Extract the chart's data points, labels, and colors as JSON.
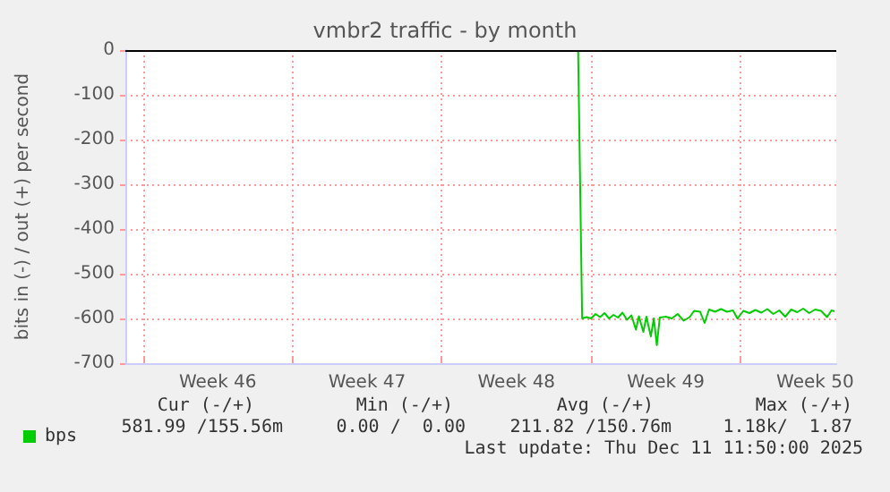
{
  "chart_data": {
    "type": "line",
    "title": "vmbr2 traffic - by month",
    "ylabel": "bits in (-) / out (+) per second",
    "xlim": [
      "2025-11-08T04:00",
      "2025-12-11T11:50"
    ],
    "xticks": [
      {
        "value": "2025-11-09T00:00",
        "label": null
      },
      {
        "value": "2025-11-12T12:00",
        "label": "Week 46"
      },
      {
        "value": "2025-11-16T00:00",
        "label": null
      },
      {
        "value": "2025-11-19T12:00",
        "label": "Week 47"
      },
      {
        "value": "2025-11-23T00:00",
        "label": null
      },
      {
        "value": "2025-11-26T12:00",
        "label": "Week 48"
      },
      {
        "value": "2025-11-30T00:00",
        "label": null
      },
      {
        "value": "2025-12-03T12:00",
        "label": "Week 49"
      },
      {
        "value": "2025-12-07T00:00",
        "label": null
      },
      {
        "value": "2025-12-10T12:00",
        "label": "Week 50"
      }
    ],
    "ylim": [
      -700,
      0
    ],
    "yticks": [
      -700,
      -600,
      -500,
      -400,
      -300,
      -200,
      -100,
      0
    ],
    "grid": true,
    "legend": "bottom left",
    "marker": "none",
    "line_style": "solid",
    "ref_lines": [
      {
        "axis": "y",
        "value": 0,
        "color": "#000000"
      }
    ],
    "series": [
      {
        "name": "bps",
        "color": "#00cc00",
        "x": [
          "2025-11-29T09:23",
          "2025-11-29T13:55",
          "2025-11-29T18:58",
          "2025-11-30T00:00",
          "2025-11-30T05:02",
          "2025-11-30T10:05",
          "2025-11-30T15:07",
          "2025-11-30T20:10",
          "2025-12-01T01:12",
          "2025-12-01T06:14",
          "2025-12-01T11:17",
          "2025-12-01T16:19",
          "2025-12-01T21:22",
          "2025-12-02T02:24",
          "2025-12-02T05:46",
          "2025-12-02T10:48",
          "2025-12-02T14:10",
          "2025-12-02T19:12",
          "2025-12-02T22:34",
          "2025-12-03T01:55",
          "2025-12-03T05:17",
          "2025-12-03T12:00",
          "2025-12-03T18:43",
          "2025-12-04T01:26",
          "2025-12-04T08:10",
          "2025-12-04T14:53",
          "2025-12-04T19:55",
          "2025-12-05T02:38",
          "2025-12-05T07:41",
          "2025-12-05T12:43",
          "2025-12-05T19:26",
          "2025-12-06T02:10",
          "2025-12-06T08:53",
          "2025-12-06T15:36",
          "2025-12-06T20:38",
          "2025-12-07T03:22",
          "2025-12-07T10:05",
          "2025-12-07T16:48",
          "2025-12-07T23:31",
          "2025-12-08T06:14",
          "2025-12-08T12:58",
          "2025-12-08T19:41",
          "2025-12-09T02:24",
          "2025-12-09T09:07",
          "2025-12-09T15:50",
          "2025-12-09T22:34",
          "2025-12-10T05:17",
          "2025-12-10T12:00",
          "2025-12-10T18:43",
          "2025-12-11T01:26",
          "2025-12-11T06:29",
          "2025-12-11T09:50"
        ],
        "values": [
          0,
          -600,
          -597,
          -600,
          -590,
          -597,
          -588,
          -600,
          -592,
          -598,
          -587,
          -603,
          -593,
          -625,
          -595,
          -630,
          -596,
          -640,
          -600,
          -660,
          -598,
          -596,
          -600,
          -590,
          -605,
          -597,
          -583,
          -585,
          -610,
          -580,
          -585,
          -579,
          -585,
          -582,
          -600,
          -583,
          -588,
          -581,
          -587,
          -579,
          -590,
          -582,
          -596,
          -580,
          -586,
          -578,
          -588,
          -580,
          -583,
          -597,
          -582,
          -584
        ]
      }
    ],
    "annotations": [
      "Cur (-/+)",
      "Min (-/+)",
      "Avg (-/+)",
      "Max (-/+)",
      "581.99 /155.56m",
      "0.00 /  0.00",
      "211.82 /150.76m",
      "1.18k/  1.87",
      "Last update: Thu Dec 11 11:50:00 2025"
    ]
  }
}
